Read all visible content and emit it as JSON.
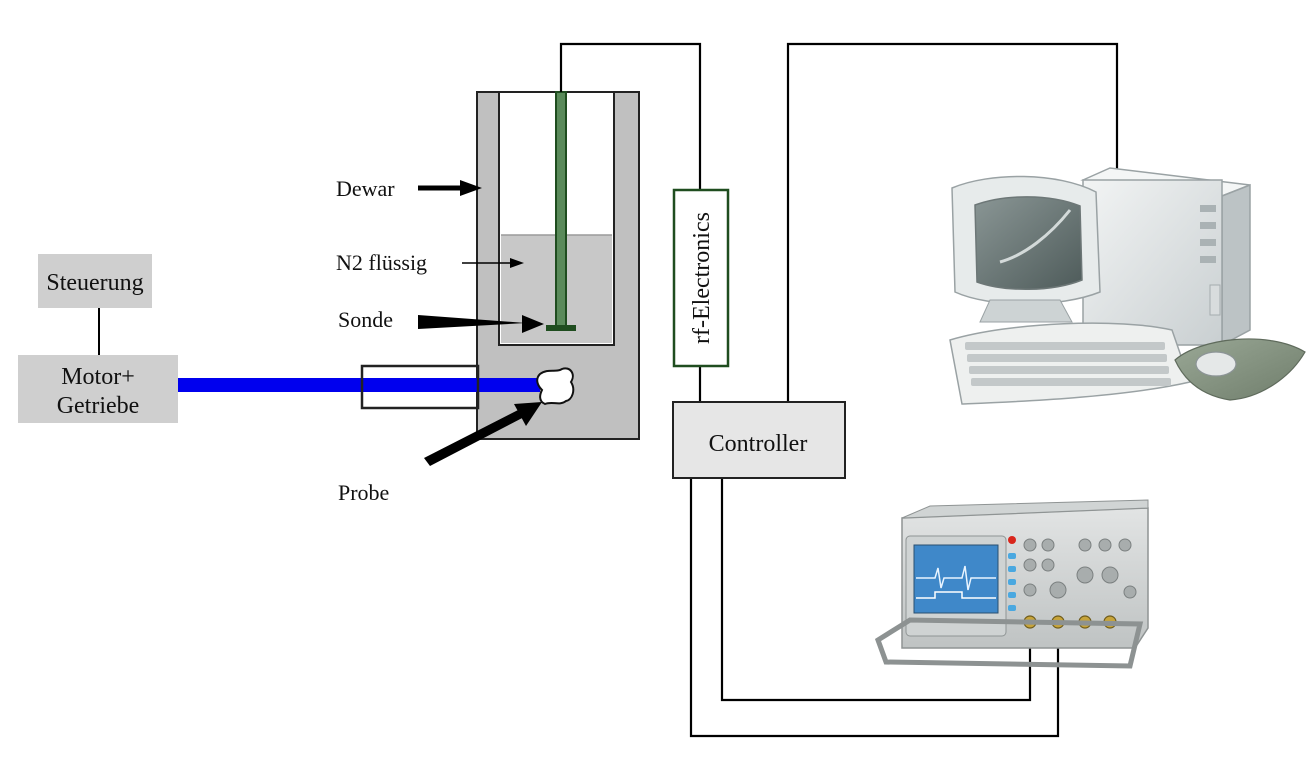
{
  "labels": {
    "steuerung": "Steuerung",
    "motor_line1": "Motor+",
    "motor_line2": "Getriebe",
    "dewar": "Dewar",
    "n2": "N2 flüssig",
    "sonde": "Sonde",
    "probe": "Probe",
    "rf": "rf-Electronics",
    "controller": "Controller"
  },
  "colors": {
    "rod": "#0000ee",
    "dewar_fill": "#c0c0c0",
    "box_fill": "#cfcfcf",
    "controller_fill": "#e6e6e6",
    "probe_stick": "#1f4d1f",
    "liquid_fill": "#c8c8c8"
  },
  "icons": {
    "computer": "desktop-computer-icon",
    "oscilloscope": "oscilloscope-icon"
  }
}
